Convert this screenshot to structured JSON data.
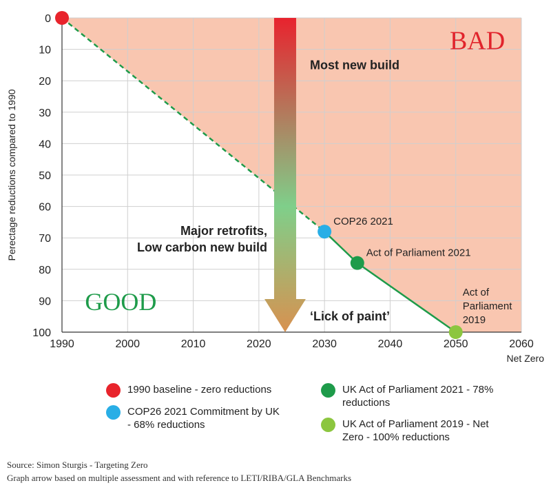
{
  "chart_data": {
    "type": "line",
    "ylabel": "Perectage reductions compared to 1990",
    "xlabel_note": "Net Zero",
    "x_ticks": [
      1990,
      2000,
      2010,
      2020,
      2030,
      2040,
      2050,
      2060
    ],
    "y_ticks": [
      0,
      10,
      20,
      30,
      40,
      50,
      60,
      70,
      80,
      90,
      100
    ],
    "xlim": [
      1990,
      2060
    ],
    "ylim": [
      0,
      100
    ],
    "y_inverted": true,
    "grid": true,
    "bad_region_color": "#f9c6b0",
    "projected_line": {
      "style": "dashed",
      "color": "#1e9b4a",
      "points": [
        [
          1990,
          0
        ],
        [
          2030,
          68
        ]
      ]
    },
    "committed_line": {
      "style": "solid",
      "color": "#1e9b4a",
      "points": [
        [
          2030,
          68
        ],
        [
          2035,
          78
        ],
        [
          2050,
          100
        ]
      ]
    },
    "points": [
      {
        "x": 1990,
        "y": 0,
        "color": "#e8242c",
        "label": ""
      },
      {
        "x": 2030,
        "y": 68,
        "color": "#29aee6",
        "label": "COP26 2021"
      },
      {
        "x": 2035,
        "y": 78,
        "color": "#1e9b4a",
        "label": "Act of Parliament 2021"
      },
      {
        "x": 2050,
        "y": 100,
        "color": "#8cc63f",
        "label": "Act of Parliament 2019"
      }
    ],
    "region_labels": {
      "bad": "BAD",
      "good": "GOOD"
    },
    "arrow": {
      "x": 2024,
      "from_y": 0,
      "to_y": 100,
      "colors": [
        "#e8232e",
        "#7fcf8a",
        "#d89150"
      ],
      "annotations": [
        {
          "text": "Most new build",
          "y": 15,
          "side": "right"
        },
        {
          "lines": [
            "Major retrofits,",
            "Low carbon new build"
          ],
          "y": 70,
          "side": "left"
        },
        {
          "text": "‘Lick of paint’",
          "y": 95,
          "side": "right"
        }
      ]
    },
    "legend": [
      {
        "color": "#e8242c",
        "text": "1990 baseline - zero reductions"
      },
      {
        "color": "#29aee6",
        "text": "COP26 2021 Commitment by UK - 68% reductions"
      },
      {
        "color": "#1e9b4a",
        "text": "UK Act of Parliament 2021 - 78% reductions"
      },
      {
        "color": "#8cc63f",
        "text": "UK Act of Parliament 2019 - Net Zero - 100% reductions"
      }
    ]
  },
  "source": {
    "line1": "Source: Simon Sturgis - Targeting Zero",
    "line2": "Graph arrow based on multiple assessment and with reference to LETI/RIBA/GLA Benchmarks"
  }
}
